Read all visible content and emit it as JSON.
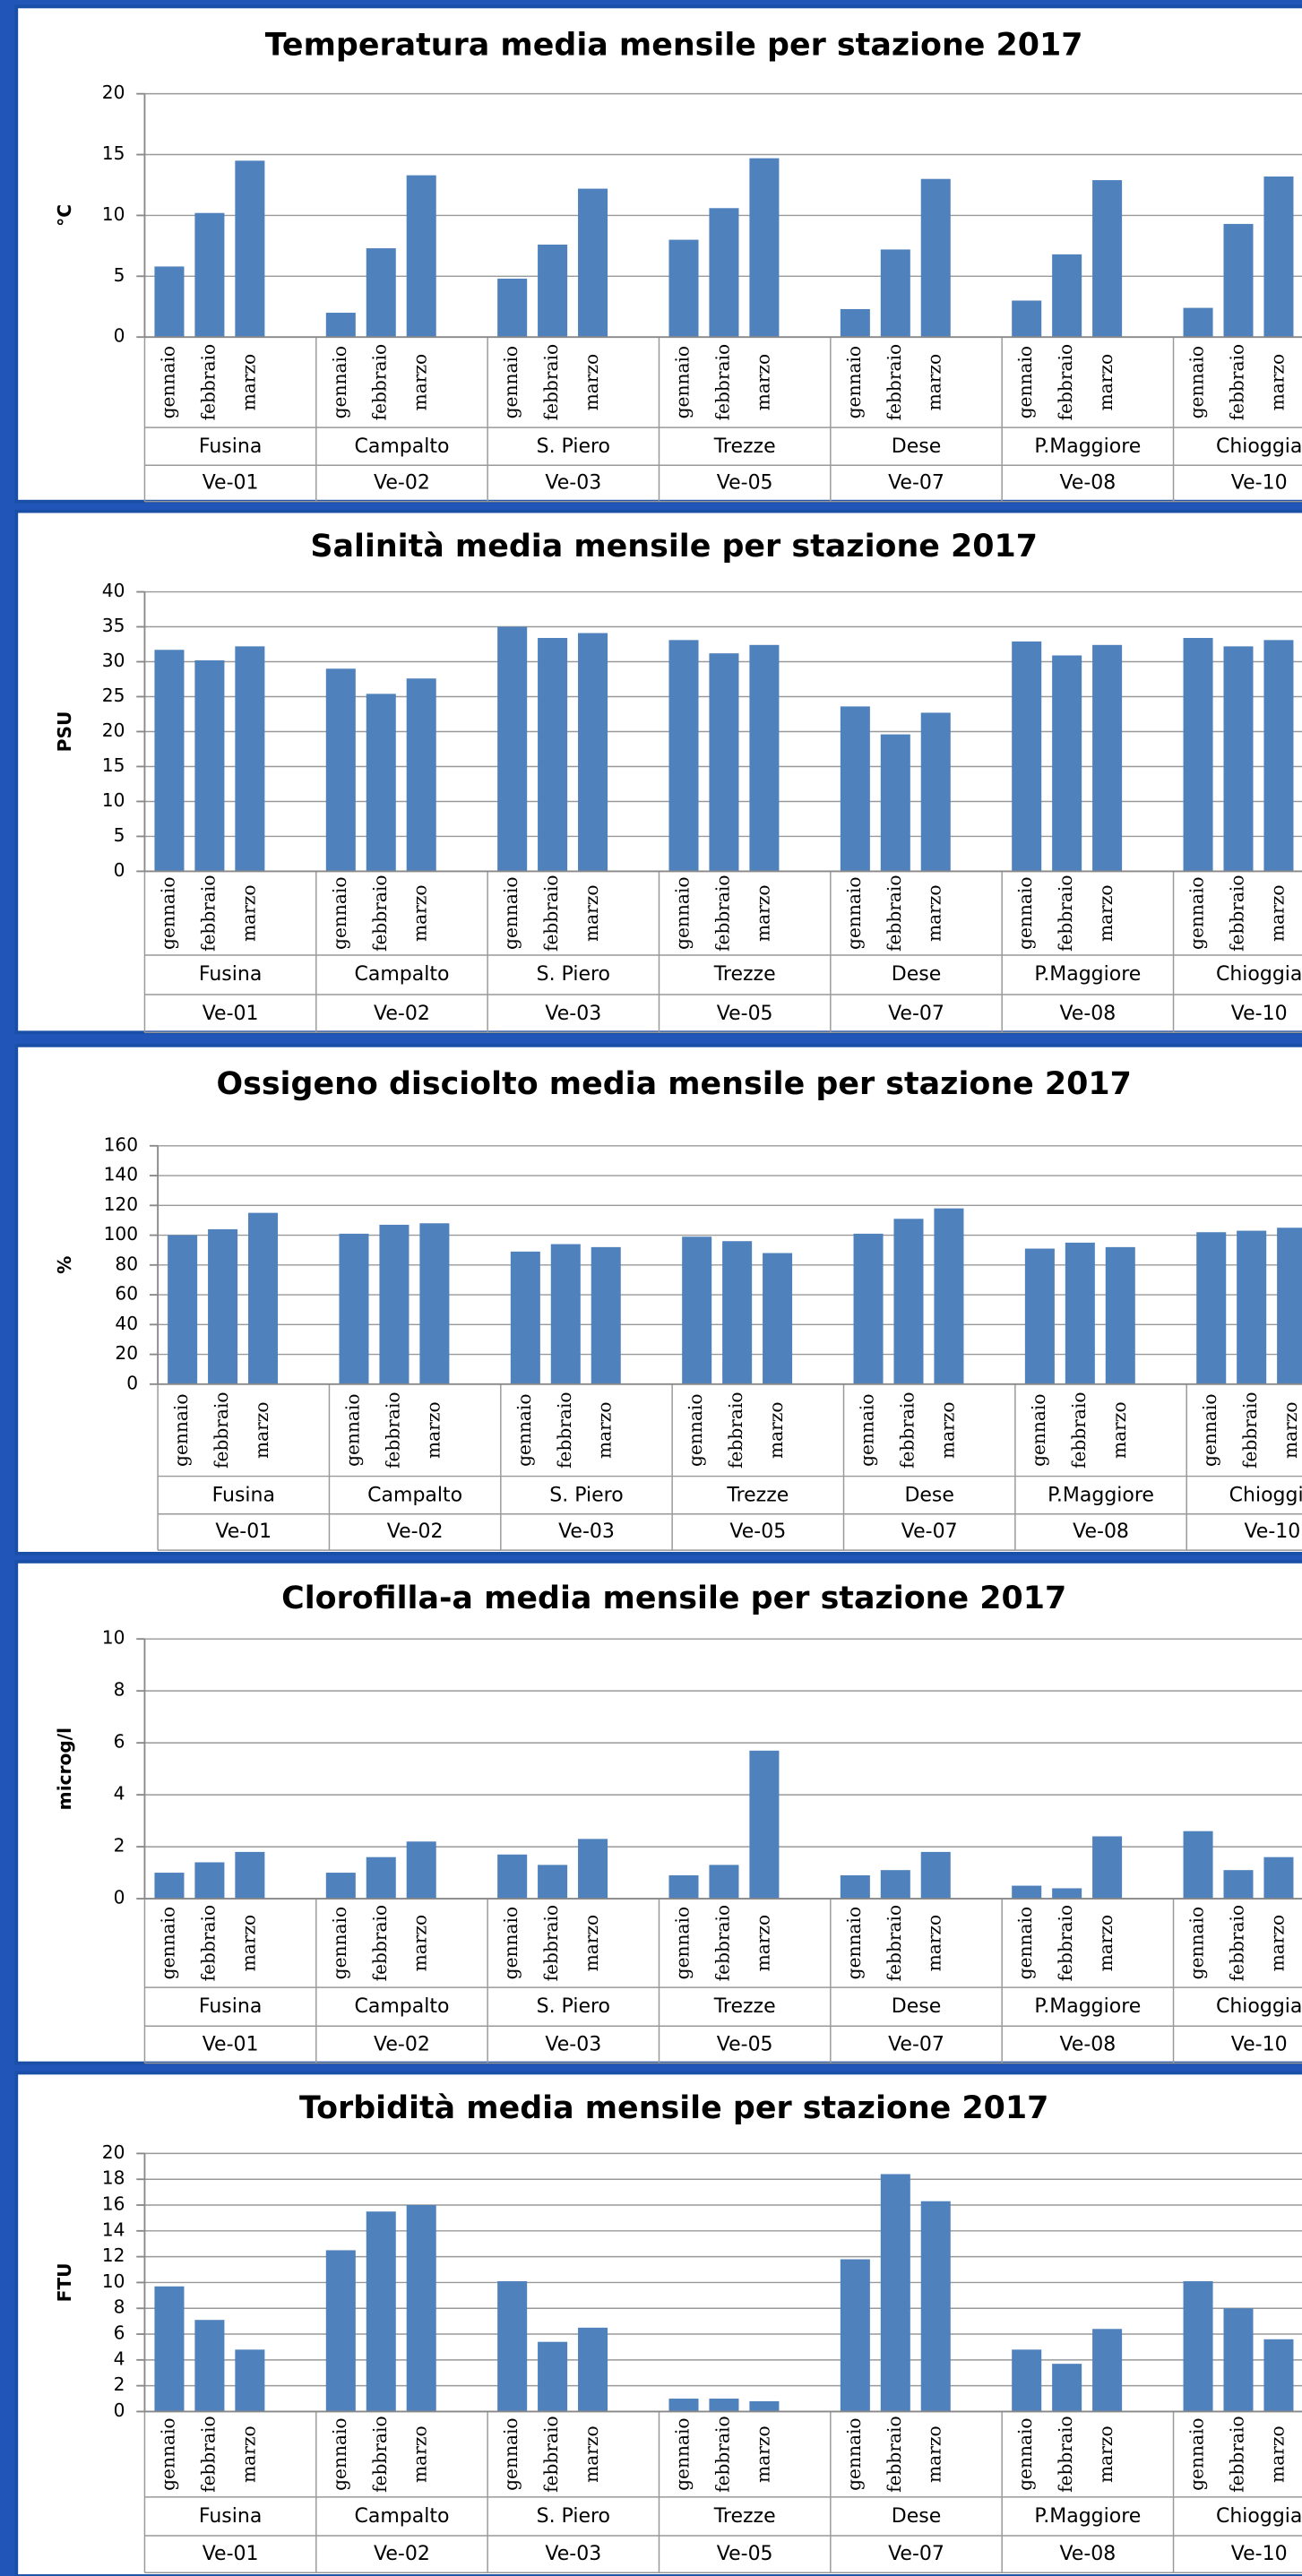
{
  "chart_data": [
    {
      "type": "bar",
      "title": "Temperatura media mensile per stazione 2017",
      "y_label": "°C",
      "color": "#4f81bd",
      "grid": true,
      "months": [
        "gennaio",
        "febbraio",
        "marzo"
      ],
      "stations": [
        "Fusina",
        "Campalto",
        "S. Piero",
        "Trezze",
        "Dese",
        "P.Maggiore",
        "Chioggia"
      ],
      "codes": [
        "Ve-01",
        "Ve-02",
        "Ve-03",
        "Ve-05",
        "Ve-07",
        "Ve-08",
        "Ve-10"
      ],
      "values": [
        [
          5.8,
          10.2,
          14.5
        ],
        [
          2.0,
          7.3,
          13.3
        ],
        [
          4.8,
          7.6,
          12.2
        ],
        [
          8.0,
          10.6,
          14.7
        ],
        [
          2.3,
          7.2,
          13.0
        ],
        [
          3.0,
          6.8,
          12.9
        ],
        [
          2.4,
          9.3,
          13.2
        ]
      ],
      "ylim": [
        0,
        20
      ],
      "yticks": [
        0,
        5,
        10,
        15,
        20
      ]
    },
    {
      "type": "bar",
      "title": "Salinità media mensile per stazione 2017",
      "y_label": "PSU",
      "color": "#4f81bd",
      "grid": true,
      "months": [
        "gennaio",
        "febbraio",
        "marzo"
      ],
      "stations": [
        "Fusina",
        "Campalto",
        "S. Piero",
        "Trezze",
        "Dese",
        "P.Maggiore",
        "Chioggia"
      ],
      "codes": [
        "Ve-01",
        "Ve-02",
        "Ve-03",
        "Ve-05",
        "Ve-07",
        "Ve-08",
        "Ve-10"
      ],
      "values": [
        [
          31.7,
          30.2,
          32.2
        ],
        [
          29.0,
          25.4,
          27.6
        ],
        [
          35.0,
          33.4,
          34.1
        ],
        [
          33.1,
          31.2,
          32.4
        ],
        [
          23.6,
          19.6,
          22.7
        ],
        [
          32.9,
          30.9,
          32.4
        ],
        [
          33.4,
          32.2,
          33.1
        ]
      ],
      "ylim": [
        0,
        40
      ],
      "yticks": [
        0,
        5,
        10,
        15,
        20,
        25,
        30,
        35,
        40
      ]
    },
    {
      "type": "bar",
      "title": "Ossigeno disciolto  media mensile per stazione 2017",
      "y_label": "%",
      "color": "#4f81bd",
      "grid": true,
      "months": [
        "gennaio",
        "febbraio",
        "marzo"
      ],
      "stations": [
        "Fusina",
        "Campalto",
        "S. Piero",
        "Trezze",
        "Dese",
        "P.Maggiore",
        "Chioggia"
      ],
      "codes": [
        "Ve-01",
        "Ve-02",
        "Ve-03",
        "Ve-05",
        "Ve-07",
        "Ve-08",
        "Ve-10"
      ],
      "values": [
        [
          100,
          104,
          115
        ],
        [
          101,
          107,
          108
        ],
        [
          89,
          94,
          92
        ],
        [
          99,
          96,
          88
        ],
        [
          101,
          111,
          118
        ],
        [
          91,
          95,
          92
        ],
        [
          102,
          103,
          105
        ]
      ],
      "ylim": [
        0,
        160
      ],
      "yticks": [
        0,
        20,
        40,
        60,
        80,
        100,
        120,
        140,
        160
      ]
    },
    {
      "type": "bar",
      "title": "Clorofilla-a media mensile per stazione 2017",
      "y_label": "microg/l",
      "color": "#4f81bd",
      "grid": true,
      "months": [
        "gennaio",
        "febbraio",
        "marzo"
      ],
      "stations": [
        "Fusina",
        "Campalto",
        "S. Piero",
        "Trezze",
        "Dese",
        "P.Maggiore",
        "Chioggia"
      ],
      "codes": [
        "Ve-01",
        "Ve-02",
        "Ve-03",
        "Ve-05",
        "Ve-07",
        "Ve-08",
        "Ve-10"
      ],
      "values": [
        [
          1.0,
          1.4,
          1.8
        ],
        [
          1.0,
          1.6,
          2.2
        ],
        [
          1.7,
          1.3,
          2.3
        ],
        [
          0.9,
          1.3,
          5.7
        ],
        [
          0.9,
          1.1,
          1.8
        ],
        [
          0.5,
          0.4,
          2.4
        ],
        [
          2.6,
          1.1,
          1.6
        ]
      ],
      "ylim": [
        0,
        10
      ],
      "yticks": [
        0,
        2,
        4,
        6,
        8,
        10
      ]
    },
    {
      "type": "bar",
      "title": "Torbidità media mensile per stazione 2017",
      "y_label": "FTU",
      "color": "#4f81bd",
      "grid": true,
      "months": [
        "gennaio",
        "febbraio",
        "marzo"
      ],
      "stations": [
        "Fusina",
        "Campalto",
        "S. Piero",
        "Trezze",
        "Dese",
        "P.Maggiore",
        "Chioggia"
      ],
      "codes": [
        "Ve-01",
        "Ve-02",
        "Ve-03",
        "Ve-05",
        "Ve-07",
        "Ve-08",
        "Ve-10"
      ],
      "values": [
        [
          9.7,
          7.1,
          4.8
        ],
        [
          12.5,
          15.5,
          16.0
        ],
        [
          10.1,
          5.4,
          6.5
        ],
        [
          1.0,
          1.0,
          0.8
        ],
        [
          11.8,
          18.4,
          16.3
        ],
        [
          4.8,
          3.7,
          6.4
        ],
        [
          10.1,
          8.0,
          5.6
        ]
      ],
      "ylim": [
        0,
        20
      ],
      "yticks": [
        0,
        2,
        4,
        6,
        8,
        10,
        12,
        14,
        16,
        18,
        20
      ]
    }
  ]
}
